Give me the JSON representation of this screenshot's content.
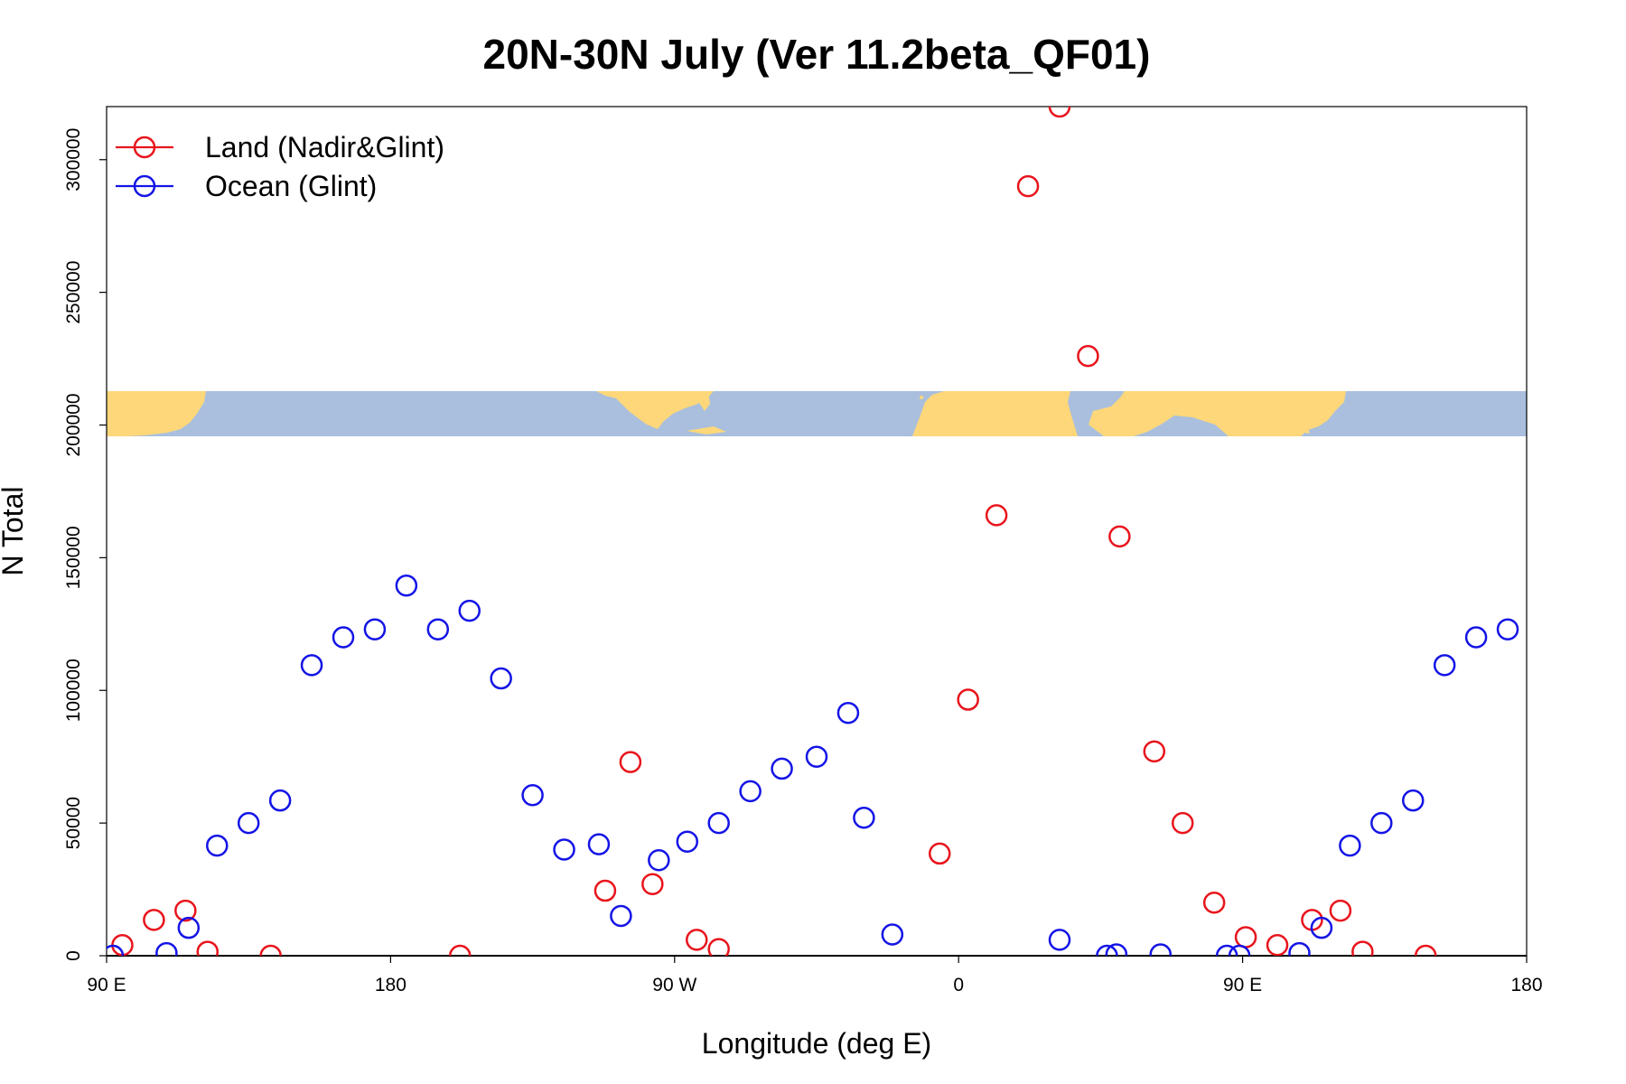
{
  "chart_data": {
    "type": "scatter",
    "title": "20N-30N July (Ver 11.2beta_QF01)",
    "xlabel": "Longitude (deg E)",
    "ylabel": "N Total",
    "xlim": [
      90,
      540
    ],
    "ylim": [
      0,
      320000
    ],
    "xticks": [
      {
        "value": 90,
        "label": "90 E"
      },
      {
        "value": 180,
        "label": "180"
      },
      {
        "value": 270,
        "label": "90 W"
      },
      {
        "value": 360,
        "label": "0"
      },
      {
        "value": 450,
        "label": "90 E"
      },
      {
        "value": 540,
        "label": "180"
      }
    ],
    "yticks": [
      {
        "value": 0,
        "label": "0"
      },
      {
        "value": 50000,
        "label": "50000"
      },
      {
        "value": 100000,
        "label": "100000"
      },
      {
        "value": 150000,
        "label": "150000"
      },
      {
        "value": 200000,
        "label": "200000"
      },
      {
        "value": 250000,
        "label": "250000"
      },
      {
        "value": 300000,
        "label": "300000"
      }
    ],
    "legend_position": "top-left",
    "map_strip": {
      "description_range": [
        195000,
        212000
      ],
      "land_color": "#fdd77a",
      "ocean_color": "#a9bfdd"
    },
    "series": [
      {
        "name": "Land (Nadir&Glint)",
        "color": "#e8141c",
        "points": [
          {
            "x": 95,
            "y": 4000
          },
          {
            "x": 105,
            "y": 13500
          },
          {
            "x": 115,
            "y": 17000
          },
          {
            "x": 122,
            "y": 1500
          },
          {
            "x": 142,
            "y": 0
          },
          {
            "x": 202,
            "y": 0
          },
          {
            "x": 248,
            "y": 24500
          },
          {
            "x": 256,
            "y": 73000
          },
          {
            "x": 263,
            "y": 27000
          },
          {
            "x": 277,
            "y": 6000
          },
          {
            "x": 284,
            "y": 2500
          },
          {
            "x": 354,
            "y": 38500
          },
          {
            "x": 363,
            "y": 96500
          },
          {
            "x": 372,
            "y": 166000
          },
          {
            "x": 382,
            "y": 290000
          },
          {
            "x": 392,
            "y": 320000
          },
          {
            "x": 401,
            "y": 226000
          },
          {
            "x": 411,
            "y": 158000
          },
          {
            "x": 422,
            "y": 77000
          },
          {
            "x": 431,
            "y": 50000
          },
          {
            "x": 441,
            "y": 20000
          },
          {
            "x": 451,
            "y": 7000
          },
          {
            "x": 461,
            "y": 4000
          },
          {
            "x": 472,
            "y": 13500
          },
          {
            "x": 481,
            "y": 17000
          },
          {
            "x": 488,
            "y": 1500
          },
          {
            "x": 508,
            "y": 0
          }
        ]
      },
      {
        "name": "Ocean (Glint)",
        "color": "#1414e6",
        "points": [
          {
            "x": 92,
            "y": 0
          },
          {
            "x": 109,
            "y": 1000
          },
          {
            "x": 116,
            "y": 10500
          },
          {
            "x": 125,
            "y": 41500
          },
          {
            "x": 135,
            "y": 50000
          },
          {
            "x": 145,
            "y": 58500
          },
          {
            "x": 155,
            "y": 109500
          },
          {
            "x": 165,
            "y": 120000
          },
          {
            "x": 175,
            "y": 123000
          },
          {
            "x": 185,
            "y": 139500
          },
          {
            "x": 195,
            "y": 123000
          },
          {
            "x": 205,
            "y": 130000
          },
          {
            "x": 215,
            "y": 104500
          },
          {
            "x": 225,
            "y": 60500
          },
          {
            "x": 235,
            "y": 40000
          },
          {
            "x": 246,
            "y": 42000
          },
          {
            "x": 253,
            "y": 15000
          },
          {
            "x": 265,
            "y": 36000
          },
          {
            "x": 274,
            "y": 43000
          },
          {
            "x": 284,
            "y": 50000
          },
          {
            "x": 294,
            "y": 62000
          },
          {
            "x": 304,
            "y": 70500
          },
          {
            "x": 315,
            "y": 75000
          },
          {
            "x": 325,
            "y": 91500
          },
          {
            "x": 330,
            "y": 52000
          },
          {
            "x": 339,
            "y": 8000
          },
          {
            "x": 392,
            "y": 6000
          },
          {
            "x": 407,
            "y": 0
          },
          {
            "x": 410,
            "y": 500
          },
          {
            "x": 424,
            "y": 500
          },
          {
            "x": 445,
            "y": 0
          },
          {
            "x": 449,
            "y": 0
          },
          {
            "x": 468,
            "y": 1000
          },
          {
            "x": 475,
            "y": 10500
          },
          {
            "x": 484,
            "y": 41500
          },
          {
            "x": 494,
            "y": 50000
          },
          {
            "x": 504,
            "y": 58500
          },
          {
            "x": 514,
            "y": 109500
          },
          {
            "x": 524,
            "y": 120000
          },
          {
            "x": 534,
            "y": 123000
          }
        ]
      }
    ]
  }
}
